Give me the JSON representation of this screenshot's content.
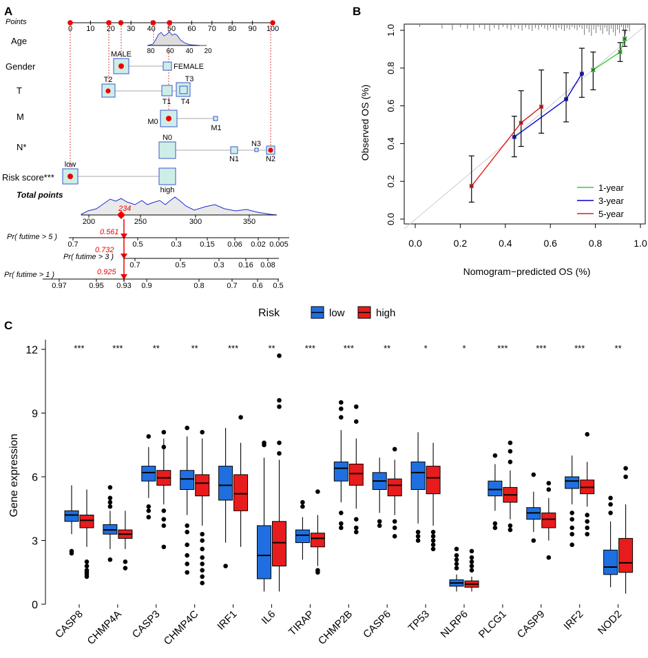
{
  "panels": {
    "A": "A",
    "B": "B",
    "C": "C"
  },
  "chart_data": [
    {
      "type": "nomogram",
      "panel": "A",
      "points_axis": {
        "label": "Points",
        "ticks": [
          0,
          10,
          20,
          30,
          40,
          50,
          60,
          70,
          80,
          90,
          100
        ]
      },
      "variables": [
        {
          "name": "Age",
          "ticks": [
            "80",
            "60",
            "40",
            "20"
          ]
        },
        {
          "name": "Gender",
          "levels": [
            "MALE",
            "FEMALE"
          ]
        },
        {
          "name": "T",
          "levels": [
            "T2",
            "T3",
            "T1",
            "T4"
          ]
        },
        {
          "name": "M",
          "levels": [
            "M0",
            "M1"
          ]
        },
        {
          "name": "N*",
          "levels": [
            "N0",
            "N3",
            "N1",
            "N2"
          ]
        },
        {
          "name": "Risk score***",
          "levels": [
            "low",
            "high"
          ]
        }
      ],
      "total_points": {
        "label": "Total points",
        "ticks": [
          "200",
          "250",
          "300",
          "350"
        ],
        "value": "234"
      },
      "probabilities": [
        {
          "label": "Pr( futime > 5 )",
          "value": "0.561",
          "ticks": [
            "0.7",
            "0.5",
            "0.3",
            "0.15",
            "0.06",
            "0.02",
            "0.005"
          ]
        },
        {
          "label": "Pr( futime > 3 )",
          "value": "0.732",
          "ticks": [
            "0.7",
            "0.5",
            "0.3",
            "0.16",
            "0.08"
          ]
        },
        {
          "label": "Pr( futime > 1 )",
          "value": "0.925",
          "ticks": [
            "0.97",
            "0.95",
            "0.93",
            "0.9",
            "0.8",
            "0.7",
            "0.6",
            "0.5"
          ]
        }
      ]
    },
    {
      "type": "line",
      "panel": "B",
      "xlabel": "Nomogram−predicted OS (%)",
      "ylabel": "Observed OS (%)",
      "xlim": [
        0,
        1
      ],
      "ylim": [
        0,
        1
      ],
      "xticks": [
        "0.0",
        "0.2",
        "0.4",
        "0.6",
        "0.8",
        "1.0"
      ],
      "yticks": [
        "0.0",
        "0.2",
        "0.4",
        "0.6",
        "0.8",
        "1.0"
      ],
      "legend": "bottom-right",
      "series": [
        {
          "name": "1-year",
          "color": "#33cc33",
          "x": [
            0.79,
            0.91,
            0.93
          ],
          "y": [
            0.79,
            0.885,
            0.955
          ],
          "lo": [
            0.685,
            0.835,
            0.915
          ],
          "hi": [
            0.885,
            0.935,
            1.0
          ]
        },
        {
          "name": "3-year",
          "color": "#0000cc",
          "x": [
            0.44,
            0.67,
            0.74
          ],
          "y": [
            0.435,
            0.635,
            0.77
          ],
          "lo": [
            0.33,
            0.515,
            0.645
          ],
          "hi": [
            0.545,
            0.775,
            0.905
          ]
        },
        {
          "name": "5-year",
          "color": "#e61919",
          "x": [
            0.25,
            0.47,
            0.56
          ],
          "y": [
            0.175,
            0.51,
            0.595
          ],
          "lo": [
            0.09,
            0.385,
            0.455
          ],
          "hi": [
            0.335,
            0.68,
            0.79
          ]
        }
      ]
    },
    {
      "type": "boxplot",
      "panel": "C",
      "legend_title": "Risk",
      "groups": [
        "low",
        "high"
      ],
      "colors": {
        "low": "#1f6fe0",
        "high": "#e81c1c"
      },
      "ylabel": "Gene expression",
      "yticks": [
        "0",
        "3",
        "6",
        "9",
        "12"
      ],
      "ylim": [
        0,
        12
      ],
      "categories": [
        "CASP8",
        "CHMP4A",
        "CASP3",
        "CHMP4C",
        "IRF1",
        "IL6",
        "TIRAP",
        "CHMP2B",
        "CASP6",
        "TP53",
        "NLRP6",
        "PLCG1",
        "CASP9",
        "IRF2",
        "NOD2"
      ],
      "significance": [
        "***",
        "***",
        "**",
        "**",
        "***",
        "**",
        "***",
        "***",
        "**",
        "*",
        "*",
        "***",
        "***",
        "***",
        "**"
      ],
      "low": [
        {
          "q1": 3.9,
          "med": 4.2,
          "q3": 4.4,
          "wlo": 3.3,
          "whi": 5.6,
          "out": [
            2.5,
            2.4
          ]
        },
        {
          "q1": 3.3,
          "med": 3.5,
          "q3": 3.75,
          "wlo": 2.6,
          "whi": 4.4,
          "out": [
            5.5,
            5.0,
            4.8,
            4.6,
            2.1
          ]
        },
        {
          "q1": 5.8,
          "med": 6.2,
          "q3": 6.5,
          "wlo": 5.0,
          "whi": 7.4,
          "out": [
            7.9,
            4.6,
            4.4,
            4.1
          ]
        },
        {
          "q1": 5.4,
          "med": 5.9,
          "q3": 6.3,
          "wlo": 4.2,
          "whi": 7.9,
          "out": [
            8.3,
            3.7,
            3.4,
            2.8,
            2.3,
            1.9,
            1.5
          ]
        },
        {
          "q1": 4.9,
          "med": 5.6,
          "q3": 6.5,
          "wlo": 2.9,
          "whi": 8.3,
          "out": [
            1.8
          ]
        },
        {
          "q1": 1.2,
          "med": 2.3,
          "q3": 3.7,
          "wlo": 0.6,
          "whi": 6.9,
          "out": [
            7.6,
            7.5
          ]
        },
        {
          "q1": 2.9,
          "med": 3.25,
          "q3": 3.5,
          "wlo": 2.1,
          "whi": 4.1,
          "out": [
            4.8,
            4.6
          ]
        },
        {
          "q1": 5.8,
          "med": 6.4,
          "q3": 6.7,
          "wlo": 4.8,
          "whi": 8.2,
          "out": [
            9.5,
            9.2,
            8.8,
            4.3,
            3.8,
            3.6
          ]
        },
        {
          "q1": 5.4,
          "med": 5.8,
          "q3": 6.2,
          "wlo": 4.3,
          "whi": 6.9,
          "out": [
            3.9,
            3.7
          ]
        },
        {
          "q1": 5.4,
          "med": 6.2,
          "q3": 6.7,
          "wlo": 3.8,
          "whi": 8.1,
          "out": [
            3.4,
            3.2,
            3.0
          ]
        },
        {
          "q1": 0.85,
          "med": 1.0,
          "q3": 1.15,
          "wlo": 0.6,
          "whi": 1.4,
          "out": [
            2.6,
            2.3,
            2.1,
            1.9,
            1.7
          ]
        },
        {
          "q1": 5.1,
          "med": 5.4,
          "q3": 5.8,
          "wlo": 4.4,
          "whi": 6.6,
          "out": [
            7.0,
            3.8,
            3.6
          ]
        },
        {
          "q1": 4.0,
          "med": 4.3,
          "q3": 4.55,
          "wlo": 3.4,
          "whi": 5.3,
          "out": [
            6.1,
            3.0
          ]
        },
        {
          "q1": 5.45,
          "med": 5.8,
          "q3": 6.0,
          "wlo": 4.7,
          "whi": 7.0,
          "out": [
            4.3,
            4.0,
            3.6,
            3.3,
            2.8
          ]
        },
        {
          "q1": 1.4,
          "med": 1.75,
          "q3": 2.55,
          "wlo": 0.8,
          "whi": 3.9,
          "out": [
            5.0,
            4.7,
            4.3
          ]
        }
      ],
      "high": [
        {
          "q1": 3.6,
          "med": 3.95,
          "q3": 4.2,
          "wlo": 2.7,
          "whi": 5.4,
          "out": [
            2.0,
            1.8,
            1.6,
            1.5,
            1.4,
            1.3
          ]
        },
        {
          "q1": 3.1,
          "med": 3.3,
          "q3": 3.5,
          "wlo": 2.6,
          "whi": 4.4,
          "out": [
            2.0,
            1.7
          ]
        },
        {
          "q1": 5.6,
          "med": 5.95,
          "q3": 6.3,
          "wlo": 4.7,
          "whi": 7.8,
          "out": [
            8.1,
            7.4,
            4.4,
            4.0,
            3.7,
            2.7
          ]
        },
        {
          "q1": 5.1,
          "med": 5.7,
          "q3": 6.1,
          "wlo": 3.7,
          "whi": 7.8,
          "out": [
            8.1,
            3.3,
            3.0,
            2.6,
            2.2,
            1.9,
            1.6,
            1.3,
            1.0
          ]
        },
        {
          "q1": 4.4,
          "med": 5.2,
          "q3": 6.1,
          "wlo": 2.7,
          "whi": 7.6,
          "out": [
            8.8
          ]
        },
        {
          "q1": 1.8,
          "med": 2.9,
          "q3": 3.9,
          "wlo": 0.6,
          "whi": 6.8,
          "out": [
            11.7,
            9.6,
            9.3,
            7.6,
            7.1
          ]
        },
        {
          "q1": 2.7,
          "med": 3.1,
          "q3": 3.35,
          "wlo": 1.8,
          "whi": 4.2,
          "out": [
            5.3,
            1.6,
            1.5
          ]
        },
        {
          "q1": 5.6,
          "med": 6.15,
          "q3": 6.6,
          "wlo": 4.5,
          "whi": 7.8,
          "out": [
            9.3,
            8.6,
            4.0,
            3.6,
            3.4
          ]
        },
        {
          "q1": 5.1,
          "med": 5.6,
          "q3": 5.9,
          "wlo": 4.2,
          "whi": 6.8,
          "out": [
            7.3,
            3.9,
            3.6,
            3.2
          ]
        },
        {
          "q1": 5.2,
          "med": 5.95,
          "q3": 6.5,
          "wlo": 3.7,
          "whi": 7.6,
          "out": [
            3.4,
            3.2,
            3.0,
            2.8,
            2.6
          ]
        },
        {
          "q1": 0.8,
          "med": 0.95,
          "q3": 1.1,
          "wlo": 0.6,
          "whi": 1.3,
          "out": [
            2.5,
            2.2,
            2.0,
            1.8,
            1.6
          ]
        },
        {
          "q1": 4.8,
          "med": 5.15,
          "q3": 5.5,
          "wlo": 4.0,
          "whi": 6.3,
          "out": [
            7.6,
            7.2,
            6.7,
            3.7,
            3.5
          ]
        },
        {
          "q1": 3.6,
          "med": 4.0,
          "q3": 4.3,
          "wlo": 3.0,
          "whi": 5.0,
          "out": [
            5.7,
            5.4,
            2.2
          ]
        },
        {
          "q1": 5.2,
          "med": 5.5,
          "q3": 5.85,
          "wlo": 4.6,
          "whi": 6.7,
          "out": [
            8.0,
            4.2,
            3.9,
            3.6,
            3.3
          ]
        },
        {
          "q1": 1.5,
          "med": 1.95,
          "q3": 3.1,
          "wlo": 0.5,
          "whi": 4.7,
          "out": [
            6.4,
            6.0
          ]
        }
      ]
    }
  ]
}
